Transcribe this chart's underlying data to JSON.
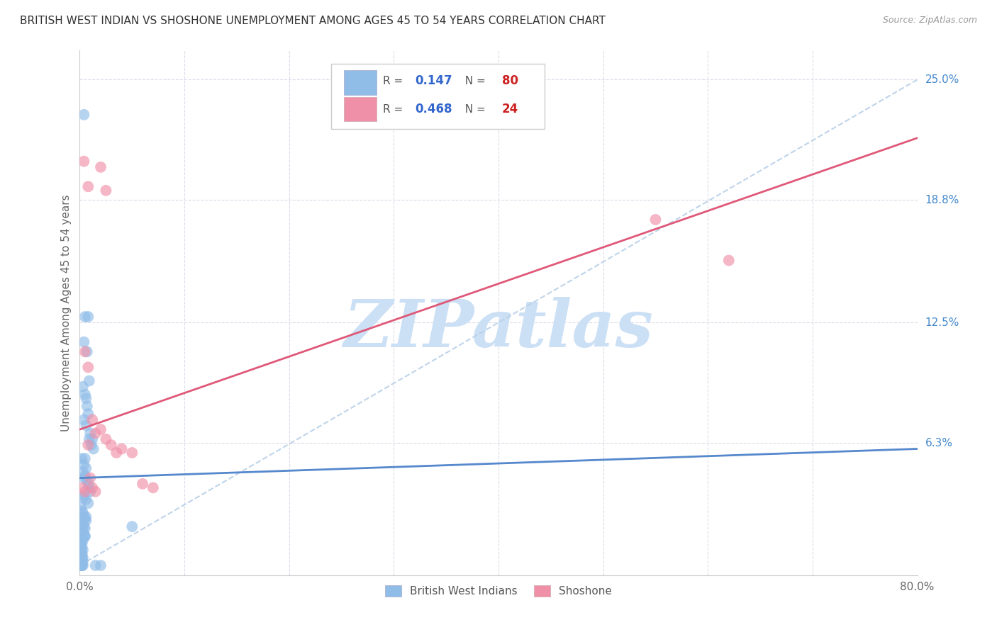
{
  "title": "BRITISH WEST INDIAN VS SHOSHONE UNEMPLOYMENT AMONG AGES 45 TO 54 YEARS CORRELATION CHART",
  "source": "Source: ZipAtlas.com",
  "ylabel": "Unemployment Among Ages 45 to 54 years",
  "xlim": [
    0.0,
    0.8
  ],
  "ylim": [
    -0.005,
    0.265
  ],
  "ytick_labels_right": [
    "25.0%",
    "18.8%",
    "12.5%",
    "6.3%"
  ],
  "ytick_values_right": [
    0.25,
    0.188,
    0.125,
    0.063
  ],
  "background_color": "#ffffff",
  "grid_color": "#d8d8e8",
  "bwi_color": "#90bce8",
  "shoshone_color": "#f090a8",
  "bwi_R": 0.147,
  "bwi_N": 80,
  "shoshone_R": 0.468,
  "shoshone_N": 24,
  "bwi_line_color": "#5588cc",
  "shoshone_line_color": "#e05878",
  "diagonal_line_color": "#b8d0e8",
  "watermark_text": "ZIPatlas",
  "watermark_color": "#cce0f5"
}
